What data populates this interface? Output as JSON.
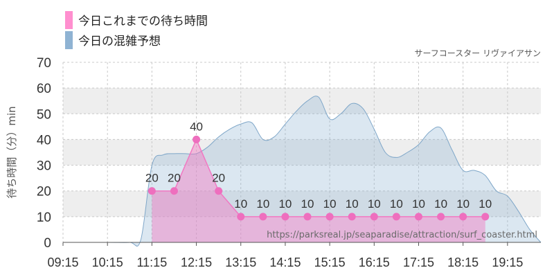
{
  "chart_data": {
    "type": "area",
    "legend": [
      {
        "label": "今日これまでの待ち時間",
        "color": "#ff8fcf"
      },
      {
        "label": "今日の混雑予想",
        "color": "#8fb3d3"
      }
    ],
    "attraction": "サーフコースター リヴァイアサン",
    "ylabel": "待ち時間（分）min",
    "ylim": [
      0,
      70
    ],
    "yticks": [
      0,
      10,
      20,
      30,
      40,
      50,
      60,
      70
    ],
    "xlim": [
      "09:15",
      "20:00"
    ],
    "xticks": [
      "09:15",
      "10:15",
      "11:15",
      "12:15",
      "13:15",
      "14:15",
      "15:15",
      "16:15",
      "17:15",
      "18:15",
      "19:15"
    ],
    "grid": true,
    "legend_position": "top-left",
    "source_url": "https://parksreal.jp/seaparadise/attraction/surf_coaster.html",
    "series": [
      {
        "name": "今日の混雑予想",
        "color": "#8fb3d3",
        "x": [
          "09:15",
          "10:15",
          "10:45",
          "11:00",
          "11:15",
          "11:30",
          "11:45",
          "12:00",
          "12:15",
          "12:30",
          "12:45",
          "13:00",
          "13:15",
          "13:30",
          "13:45",
          "14:00",
          "14:15",
          "14:30",
          "14:45",
          "15:00",
          "15:15",
          "15:30",
          "15:45",
          "16:00",
          "16:15",
          "16:30",
          "16:45",
          "17:00",
          "17:15",
          "17:30",
          "17:45",
          "18:00",
          "18:15",
          "18:30",
          "18:45",
          "19:00",
          "19:15",
          "19:30",
          "19:45",
          "20:00"
        ],
        "values": [
          0,
          0,
          0,
          1,
          30,
          34,
          34.5,
          34.5,
          34.5,
          37,
          41,
          44,
          46,
          46.5,
          40,
          41,
          46,
          51,
          55,
          56.5,
          48,
          50,
          54,
          52,
          44,
          35,
          33,
          35,
          38,
          43,
          44.5,
          36,
          28,
          28,
          26,
          20,
          18,
          12,
          5,
          0
        ]
      },
      {
        "name": "今日これまでの待ち時間",
        "color": "#f278c2",
        "x": [
          "11:15",
          "11:45",
          "12:15",
          "12:45",
          "13:15",
          "13:45",
          "14:15",
          "14:45",
          "15:15",
          "15:45",
          "16:15",
          "16:45",
          "17:15",
          "17:45",
          "18:15",
          "18:45"
        ],
        "values": [
          20,
          20,
          40,
          20,
          10,
          10,
          10,
          10,
          10,
          10,
          10,
          10,
          10,
          10,
          10,
          10
        ]
      }
    ]
  }
}
